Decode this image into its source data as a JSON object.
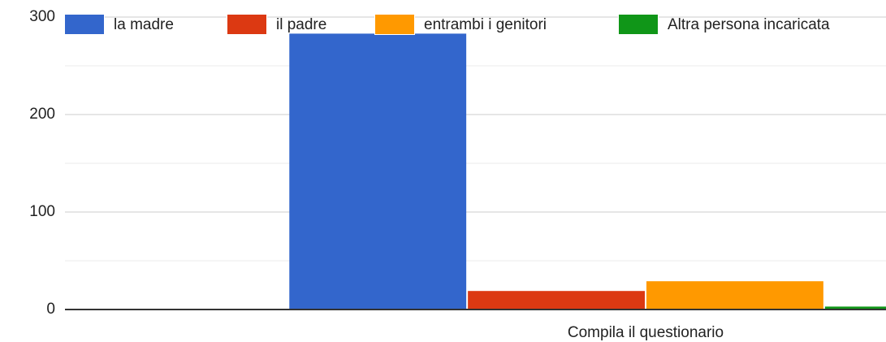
{
  "chart_data": {
    "type": "bar",
    "categories": [
      "Compila il questionario"
    ],
    "series": [
      {
        "name": "la madre",
        "color": "#3366cc",
        "values": [
          283
        ]
      },
      {
        "name": "il padre",
        "color": "#dc3912",
        "values": [
          19
        ]
      },
      {
        "name": "entrambi i genitori",
        "color": "#ff9900",
        "values": [
          29
        ]
      },
      {
        "name": "Altra persona incaricata",
        "color": "#109618",
        "values": [
          3
        ]
      }
    ],
    "ylim": [
      0,
      300
    ],
    "yticks": [
      0,
      100,
      200,
      300
    ],
    "minor_gridlines": [
      50,
      150,
      250
    ],
    "grid": true,
    "legend": "top"
  }
}
